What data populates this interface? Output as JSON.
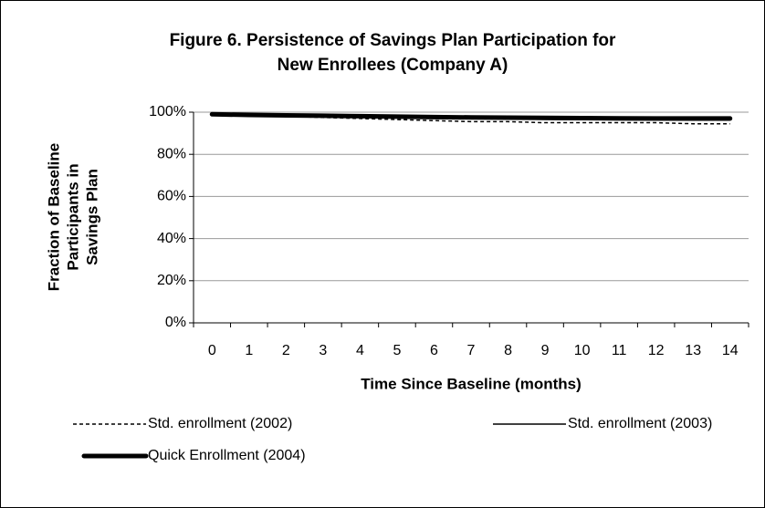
{
  "chart_data": {
    "type": "line",
    "title": [
      "Figure 6.  Persistence of Savings Plan Participation for",
      "New Enrollees (Company A)"
    ],
    "x_label": "Time Since Baseline (months)",
    "y_label": [
      "Fraction of Baseline",
      "Participants in",
      "Savings Plan"
    ],
    "categories": [
      "0",
      "1",
      "2",
      "3",
      "4",
      "5",
      "6",
      "7",
      "8",
      "9",
      "10",
      "11",
      "12",
      "13",
      "14"
    ],
    "ylim": [
      0,
      100
    ],
    "yticks": [
      {
        "value": 0,
        "label": "0%"
      },
      {
        "value": 20,
        "label": "20%"
      },
      {
        "value": 40,
        "label": "40%"
      },
      {
        "value": 60,
        "label": "60%"
      },
      {
        "value": 80,
        "label": "80%"
      },
      {
        "value": 100,
        "label": "100%"
      }
    ],
    "grid": true,
    "legend": "bottom",
    "series": [
      {
        "name": "Std. enrollment (2002)",
        "color": "#000000",
        "style": "dashed",
        "values": [
          99,
          98.5,
          98,
          97.5,
          97,
          96.5,
          96,
          95.5,
          95.5,
          95,
          95,
          95,
          95,
          94.5,
          94.5
        ]
      },
      {
        "name": "Std. enrollment (2003)",
        "color": "#000000",
        "style": "solid",
        "values": [
          99,
          98.6,
          98.3,
          98,
          97.8,
          97.5,
          97.3,
          97,
          96.8,
          96.6,
          96.5,
          96.4,
          96.3,
          96.2,
          96.2
        ]
      },
      {
        "name": "Quick Enrollment (2004)",
        "color": "#000000",
        "style": "thick",
        "values": [
          99,
          98.7,
          98.5,
          98.3,
          98.1,
          97.9,
          97.7,
          97.5,
          97.4,
          97.3,
          97.2,
          97.1,
          97,
          97,
          97
        ]
      }
    ]
  }
}
